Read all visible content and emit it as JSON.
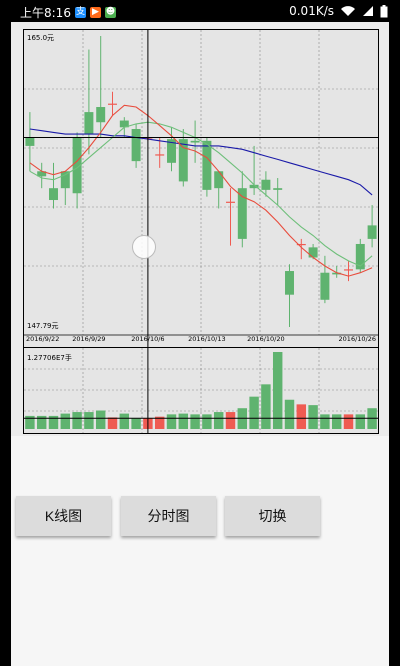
{
  "statusbar": {
    "time": "上午8:16",
    "net_speed": "0.01K/s",
    "apps": [
      {
        "icon": "alipay-icon",
        "color": "#1e90ff",
        "glyph": "支"
      },
      {
        "icon": "video-icon",
        "color": "#ff6a1a",
        "glyph": "▶"
      },
      {
        "icon": "android-icon",
        "color": "#4caf50",
        "glyph": "☻"
      }
    ]
  },
  "chart": {
    "price_max_label": "165.0元",
    "price_min_label": "147.79元",
    "volume_max_label": "1.27706E7手",
    "date_labels": [
      "2016/9/22",
      "2016/9/29",
      "2016/10/6",
      "2016/10/13",
      "2016/10/20",
      "2016/10/26"
    ],
    "colors": {
      "up": "#ef5b52",
      "down": "#5fb36f",
      "ma_short": "#e84c3d",
      "ma_mid": "#6ebf7a",
      "ma_long": "#1a1aa8",
      "crosshair": "#000000"
    }
  },
  "chart_data": {
    "type": "candlestick",
    "ylim": [
      147.79,
      165.0
    ],
    "volume_max": 12770600,
    "candles": [
      {
        "o": 159.0,
        "c": 158.5,
        "h": 160.5,
        "l": 157.0
      },
      {
        "o": 157.0,
        "c": 156.7,
        "h": 157.5,
        "l": 156.0
      },
      {
        "o": 156.0,
        "c": 155.3,
        "h": 157.5,
        "l": 154.8
      },
      {
        "o": 157.0,
        "c": 156.0,
        "h": 157.0,
        "l": 155.0
      },
      {
        "o": 159.0,
        "c": 155.7,
        "h": 159.3,
        "l": 154.8
      },
      {
        "o": 160.5,
        "c": 159.2,
        "h": 164.2,
        "l": 158.0
      },
      {
        "o": 160.8,
        "c": 159.9,
        "h": 165.0,
        "l": 159.0
      },
      {
        "o": 161.0,
        "c": 161.0,
        "h": 161.7,
        "l": 160.3
      },
      {
        "o": 160.0,
        "c": 159.6,
        "h": 160.2,
        "l": 159.0
      },
      {
        "o": 159.5,
        "c": 157.6,
        "h": 159.8,
        "l": 157.2
      },
      {
        "o": 159.0,
        "c": 159.0,
        "h": 159.0,
        "l": 158.8
      },
      {
        "o": 158.0,
        "c": 158.0,
        "h": 159.0,
        "l": 157.2
      },
      {
        "o": 158.9,
        "c": 157.5,
        "h": 159.6,
        "l": 157.0
      },
      {
        "o": 158.9,
        "c": 156.4,
        "h": 159.5,
        "l": 156.1
      },
      {
        "o": 158.8,
        "c": 158.7,
        "h": 160.0,
        "l": 157.5
      },
      {
        "o": 158.8,
        "c": 155.9,
        "h": 159.0,
        "l": 155.5
      },
      {
        "o": 157.0,
        "c": 156.0,
        "h": 157.0,
        "l": 154.8
      },
      {
        "o": 155.2,
        "c": 155.2,
        "h": 156.0,
        "l": 152.6
      },
      {
        "o": 156.0,
        "c": 153.0,
        "h": 157.0,
        "l": 152.5
      },
      {
        "o": 156.2,
        "c": 156.0,
        "h": 158.5,
        "l": 155.6
      },
      {
        "o": 156.5,
        "c": 155.9,
        "h": 157.0,
        "l": 155.5
      },
      {
        "o": 156.0,
        "c": 155.9,
        "h": 156.6,
        "l": 155.0
      },
      {
        "o": 151.1,
        "c": 149.7,
        "h": 151.5,
        "l": 147.79
      },
      {
        "o": 152.7,
        "c": 152.7,
        "h": 153.0,
        "l": 151.8
      },
      {
        "o": 152.5,
        "c": 151.9,
        "h": 152.7,
        "l": 151.8
      },
      {
        "o": 151.0,
        "c": 149.4,
        "h": 152.0,
        "l": 149.2
      },
      {
        "o": 151.0,
        "c": 150.9,
        "h": 151.4,
        "l": 150.7
      },
      {
        "o": 151.2,
        "c": 151.2,
        "h": 151.7,
        "l": 150.5
      },
      {
        "o": 152.7,
        "c": 151.2,
        "h": 153.0,
        "l": 151.0
      },
      {
        "o": 153.8,
        "c": 153.0,
        "h": 155.0,
        "l": 152.5
      }
    ],
    "ma_short": [
      157.5,
      157.0,
      156.8,
      157.0,
      157.6,
      158.4,
      159.3,
      160.3,
      160.9,
      160.8,
      160.3,
      159.7,
      159.1,
      158.4,
      158.2,
      157.8,
      157.0,
      156.1,
      155.5,
      155.2,
      154.7,
      154.0,
      153.2,
      152.5,
      151.9,
      151.4,
      151.0,
      150.8,
      151.0,
      151.3
    ],
    "ma_mid": [
      157.0,
      156.6,
      156.5,
      156.8,
      157.2,
      157.8,
      158.4,
      159.0,
      159.6,
      159.8,
      159.9,
      159.8,
      159.6,
      159.3,
      159.0,
      158.6,
      158.1,
      157.5,
      156.9,
      156.2,
      155.6,
      155.0,
      154.3,
      153.7,
      153.2,
      152.6,
      152.1,
      151.7,
      151.4,
      152.0
    ],
    "ma_long": [
      159.5,
      159.4,
      159.3,
      159.2,
      159.2,
      159.2,
      159.2,
      159.1,
      159.1,
      159.0,
      158.9,
      158.8,
      158.7,
      158.6,
      158.5,
      158.5,
      158.5,
      158.4,
      158.3,
      158.1,
      157.9,
      157.7,
      157.5,
      157.3,
      157.1,
      156.9,
      156.7,
      156.5,
      156.2,
      155.6
    ],
    "volumes": [
      0.17,
      0.17,
      0.17,
      0.2,
      0.22,
      0.22,
      0.24,
      0.15,
      0.2,
      0.14,
      0.14,
      0.16,
      0.19,
      0.2,
      0.19,
      0.19,
      0.22,
      0.22,
      0.27,
      0.42,
      0.58,
      1.0,
      0.38,
      0.32,
      0.31,
      0.19,
      0.19,
      0.19,
      0.19,
      0.27
    ],
    "crosshair": {
      "candle_index": 10
    }
  },
  "buttons": [
    {
      "label": "K线图"
    },
    {
      "label": "分时图"
    },
    {
      "label": "切换"
    }
  ]
}
